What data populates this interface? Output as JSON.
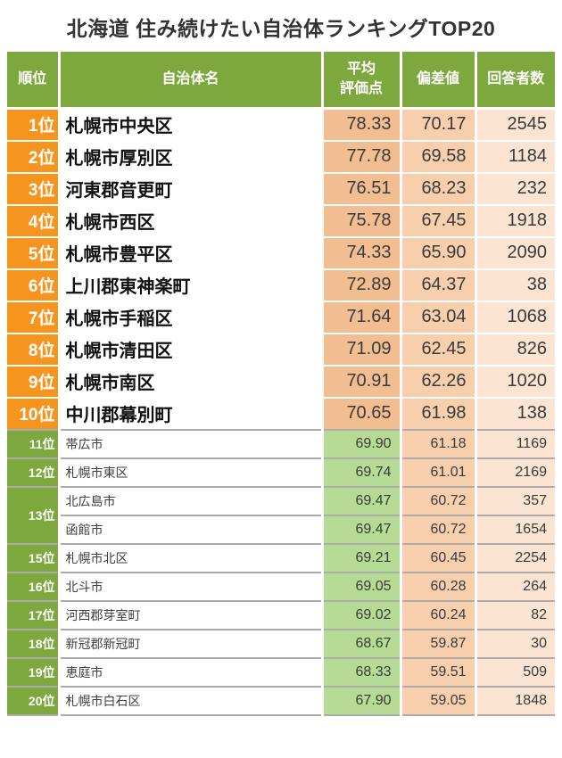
{
  "header": {
    "rank": "順位",
    "name": "自治体名",
    "avg_line1": "平均",
    "avg_line2": "評価点",
    "dev": "偏差値",
    "resp": "回答者数"
  },
  "colors": {
    "header_green": "#7CA83D",
    "rank_orange_top10": "#F7941E",
    "rank_green_11_20": "#7CA83D",
    "avg_salmon_top10": "#F3BD92",
    "avg_green_11_20": "#B6DB95",
    "deviation_peach": "#F7CFAC",
    "respondents_light_peach": "#FBE5D2",
    "row_divider_gray": "#ABABAB",
    "title_text": "#333333"
  },
  "chart_data": {
    "type": "table",
    "title": "北海道 住み続けたい自治体ランキングTOP20",
    "columns": [
      "順位",
      "自治体名",
      "平均評価点",
      "偏差値",
      "回答者数"
    ],
    "rows": [
      {
        "rank": "1位",
        "name": "札幌市中央区",
        "avg": "78.33",
        "dev": "70.17",
        "resp": "2545"
      },
      {
        "rank": "2位",
        "name": "札幌市厚別区",
        "avg": "77.78",
        "dev": "69.58",
        "resp": "1184"
      },
      {
        "rank": "3位",
        "name": "河東郡音更町",
        "avg": "76.51",
        "dev": "68.23",
        "resp": "232"
      },
      {
        "rank": "4位",
        "name": "札幌市西区",
        "avg": "75.78",
        "dev": "67.45",
        "resp": "1918"
      },
      {
        "rank": "5位",
        "name": "札幌市豊平区",
        "avg": "74.33",
        "dev": "65.90",
        "resp": "2090"
      },
      {
        "rank": "6位",
        "name": "上川郡東神楽町",
        "avg": "72.89",
        "dev": "64.37",
        "resp": "38"
      },
      {
        "rank": "7位",
        "name": "札幌市手稲区",
        "avg": "71.64",
        "dev": "63.04",
        "resp": "1068"
      },
      {
        "rank": "8位",
        "name": "札幌市清田区",
        "avg": "71.09",
        "dev": "62.45",
        "resp": "826"
      },
      {
        "rank": "9位",
        "name": "札幌市南区",
        "avg": "70.91",
        "dev": "62.26",
        "resp": "1020"
      },
      {
        "rank": "10位",
        "name": "中川郡幕別町",
        "avg": "70.65",
        "dev": "61.98",
        "resp": "138"
      },
      {
        "rank": "11位",
        "name": "帯広市",
        "avg": "69.90",
        "dev": "61.18",
        "resp": "1169"
      },
      {
        "rank": "12位",
        "name": "札幌市東区",
        "avg": "69.74",
        "dev": "61.01",
        "resp": "2169"
      },
      {
        "rank": "13位",
        "name": "北広島市",
        "avg": "69.47",
        "dev": "60.72",
        "resp": "357"
      },
      {
        "rank": "",
        "name": "函館市",
        "avg": "69.47",
        "dev": "60.72",
        "resp": "1654"
      },
      {
        "rank": "15位",
        "name": "札幌市北区",
        "avg": "69.21",
        "dev": "60.45",
        "resp": "2254"
      },
      {
        "rank": "16位",
        "name": "北斗市",
        "avg": "69.05",
        "dev": "60.28",
        "resp": "264"
      },
      {
        "rank": "17位",
        "name": "河西郡芽室町",
        "avg": "69.02",
        "dev": "60.24",
        "resp": "82"
      },
      {
        "rank": "18位",
        "name": "新冠郡新冠町",
        "avg": "68.67",
        "dev": "59.87",
        "resp": "30"
      },
      {
        "rank": "19位",
        "name": "恵庭市",
        "avg": "68.33",
        "dev": "59.51",
        "resp": "509"
      },
      {
        "rank": "20位",
        "name": "札幌市白石区",
        "avg": "67.90",
        "dev": "59.05",
        "resp": "1848"
      }
    ]
  }
}
